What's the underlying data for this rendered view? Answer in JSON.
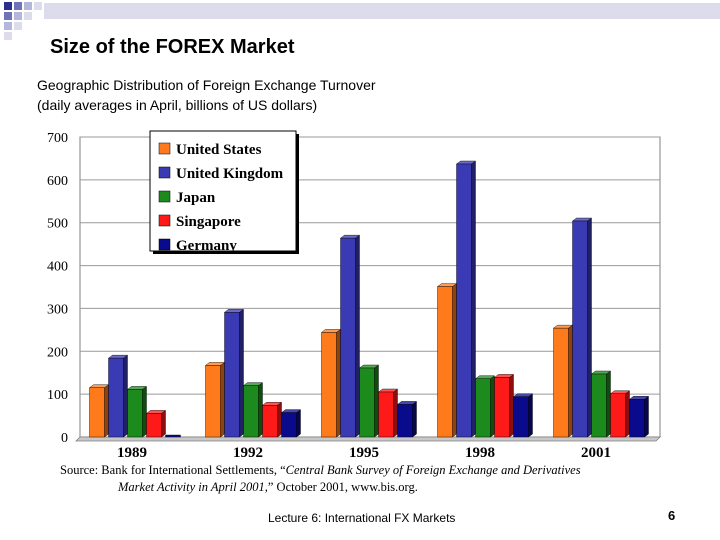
{
  "slide": {
    "title": "Size of the FOREX Market",
    "subtitle_line1": "Geographic Distribution of Foreign Exchange Turnover",
    "subtitle_line2": "(daily averages in April, billions of US dollars)",
    "source_line1_a": "Source: Bank for International Settlements, “",
    "source_line1_b": "Central Bank Survey of Foreign Exchange and Derivatives",
    "source_line2_a": "Market Activity in April 2001,",
    "source_line2_b": "” October 2001, www.bis.org.",
    "footer": "Lecture 6: International FX Markets",
    "page_number": "6",
    "accent_colors": [
      "#2a2f8c",
      "#6f74b8",
      "#b4b7da",
      "#dcdcec"
    ]
  },
  "chart_data": {
    "type": "bar",
    "title": "",
    "xlabel": "",
    "ylabel": "",
    "ylim": [
      0,
      700
    ],
    "yticks": [
      0,
      100,
      200,
      300,
      400,
      500,
      600,
      700
    ],
    "categories": [
      "1989",
      "1992",
      "1995",
      "1998",
      "2001"
    ],
    "legend": "top-left",
    "grid": true,
    "series": [
      {
        "name": "United States",
        "color": "#ff7a1a",
        "values": [
          115,
          167,
          244,
          351,
          254
        ]
      },
      {
        "name": "United Kingdom",
        "color": "#3a3ab4",
        "values": [
          184,
          291,
          464,
          637,
          504
        ]
      },
      {
        "name": "Japan",
        "color": "#1d8a1d",
        "values": [
          111,
          120,
          161,
          136,
          147
        ]
      },
      {
        "name": "Singapore",
        "color": "#ff1a1a",
        "values": [
          55,
          74,
          105,
          139,
          101
        ]
      },
      {
        "name": "Germany",
        "color": "#0a0a8c",
        "values": [
          0,
          57,
          76,
          94,
          88
        ]
      }
    ]
  }
}
